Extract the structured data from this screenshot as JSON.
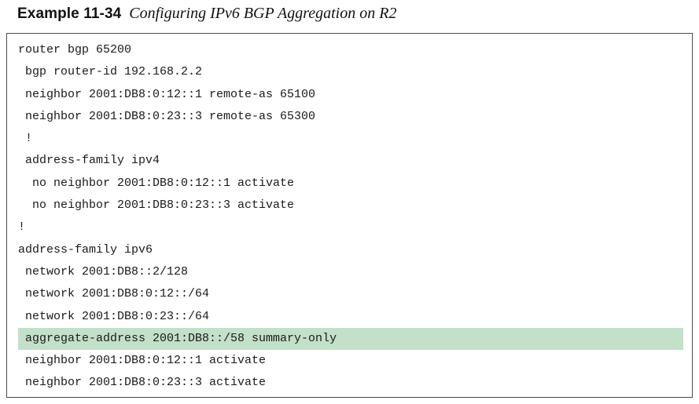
{
  "caption": {
    "label": "Example 11-34",
    "title": "Configuring IPv6 BGP Aggregation on R2"
  },
  "code": {
    "lines": [
      "router bgp 65200",
      " bgp router-id 192.168.2.2",
      " neighbor 2001:DB8:0:12::1 remote-as 65100",
      " neighbor 2001:DB8:0:23::3 remote-as 65300",
      " !",
      " address-family ipv4",
      "  no neighbor 2001:DB8:0:12::1 activate",
      "  no neighbor 2001:DB8:0:23::3 activate",
      "!",
      "address-family ipv6",
      " network 2001:DB8::2/128",
      " network 2001:DB8:0:12::/64",
      " network 2001:DB8:0:23::/64",
      " aggregate-address 2001:DB8::/58 summary-only",
      " neighbor 2001:DB8:0:12::1 activate",
      " neighbor 2001:DB8:0:23::3 activate"
    ],
    "highlight_color": "#c3e0c9"
  }
}
